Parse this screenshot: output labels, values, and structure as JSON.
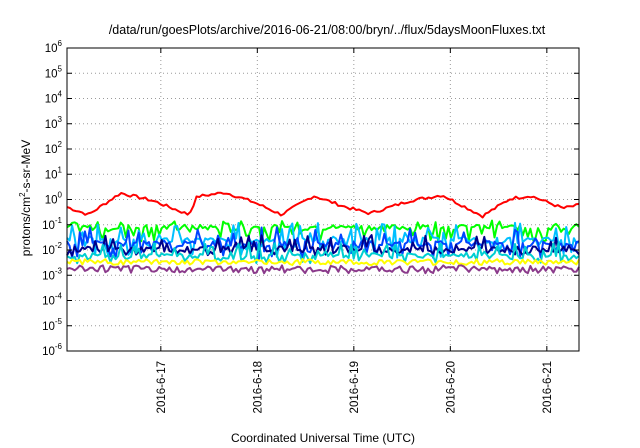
{
  "chart_data": {
    "type": "line",
    "title": "/data/run/goesPlots/archive/2016-06-21/08:00/bryn/../flux/5daysMoonFluxes.txt",
    "xlabel": "Coordinated Universal Time (UTC)",
    "ylabel_parts": [
      "protons/cm",
      "2",
      "-s-sr-MeV"
    ],
    "y_scale": "log",
    "ylim": [
      1e-06,
      1000000.0
    ],
    "y_ticks": [
      {
        "base": "10",
        "exp": "-6"
      },
      {
        "base": "10",
        "exp": "-5"
      },
      {
        "base": "10",
        "exp": "-4"
      },
      {
        "base": "10",
        "exp": "-3"
      },
      {
        "base": "10",
        "exp": "-2"
      },
      {
        "base": "10",
        "exp": "-1"
      },
      {
        "base": "10",
        "exp": "0"
      },
      {
        "base": "10",
        "exp": "1"
      },
      {
        "base": "10",
        "exp": "2"
      },
      {
        "base": "10",
        "exp": "3"
      },
      {
        "base": "10",
        "exp": "4"
      },
      {
        "base": "10",
        "exp": "5"
      },
      {
        "base": "10",
        "exp": "6"
      }
    ],
    "xlim": [
      "2016-06-16 00:40",
      "2016-06-21 08:00"
    ],
    "x_ticks": [
      "2016-6-17",
      "2016-6-18",
      "2016-6-19",
      "2016-6-20",
      "2016-6-21"
    ],
    "grid": true,
    "series": [
      {
        "color": "#ff0000",
        "style": "smooth",
        "start": 0.5,
        "end": 0.6,
        "points": [
          [
            "2016-06-16 00:40",
            0.5
          ],
          [
            "2016-06-16 06:00",
            0.25
          ],
          [
            "2016-06-16 14:00",
            1.8
          ],
          [
            "2016-06-16 22:00",
            0.9
          ],
          [
            "2016-06-17 07:00",
            0.25
          ],
          [
            "2016-06-17 09:00",
            1.3
          ],
          [
            "2016-06-17 16:00",
            1.9
          ],
          [
            "2016-06-17 23:00",
            0.8
          ],
          [
            "2016-06-18 06:00",
            0.25
          ],
          [
            "2016-06-18 14:00",
            1.4
          ],
          [
            "2016-06-18 22:00",
            0.5
          ],
          [
            "2016-06-19 04:00",
            0.28
          ],
          [
            "2016-06-19 14:00",
            0.9
          ],
          [
            "2016-06-19 22:00",
            1.5
          ],
          [
            "2016-06-20 08:00",
            0.22
          ],
          [
            "2016-06-20 15:00",
            1.1
          ],
          [
            "2016-06-20 20:00",
            1.4
          ],
          [
            "2016-06-21 04:00",
            0.45
          ],
          [
            "2016-06-21 08:00",
            0.6
          ]
        ]
      },
      {
        "color": "#00ff00",
        "base": 0.08,
        "spread": 0.15,
        "dip": 0.02
      },
      {
        "color": "#00bfff",
        "base": 0.025,
        "spread": 0.12,
        "dip": 0.005
      },
      {
        "color": "#0044ff",
        "base": 0.018,
        "spread": 0.08,
        "dip": 0.004
      },
      {
        "color": "#00008b",
        "base": 0.011,
        "spread": 0.04,
        "dip": 0.006
      },
      {
        "color": "#00ced1",
        "base": 0.006,
        "spread": 0.02,
        "dip": 0.003
      },
      {
        "color": "#ffff00",
        "base": 0.0035,
        "spread": 0.004,
        "dip": 0.0025
      },
      {
        "color": "#8b3a8b",
        "base": 0.0018,
        "spread": 0.0025,
        "dip": 0.0012
      }
    ]
  }
}
